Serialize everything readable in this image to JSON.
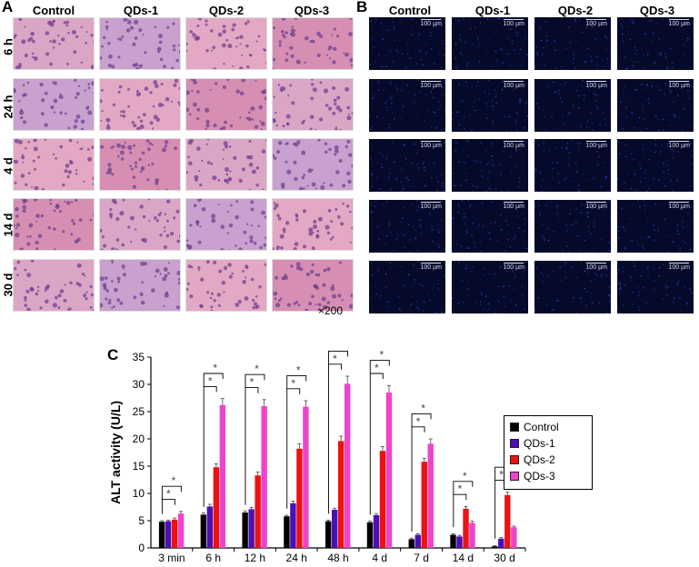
{
  "panel_a": {
    "letter": "A",
    "columns": [
      "Control",
      "QDs-1",
      "QDs-2",
      "QDs-3"
    ],
    "rows": [
      "6 h",
      "24 h",
      "4 d",
      "14 d",
      "30 d"
    ],
    "magnification": "×200"
  },
  "panel_b": {
    "letter": "B",
    "columns": [
      "Control",
      "QDs-1",
      "QDs-2",
      "QDs-3"
    ],
    "scale_label": "100 µm"
  },
  "panel_c": {
    "letter": "C"
  },
  "colors": {
    "Control": "#000000",
    "QDs-1": "#4b0fb4",
    "QDs-2": "#ee1111",
    "QDs-3": "#ee44cc",
    "he_base": "#e3b3d0",
    "fluor_base": "#050a2a"
  },
  "chart_data": {
    "type": "bar",
    "ylabel": "ALT activity (U/L)",
    "xlabel": "",
    "ylim": [
      0,
      35
    ],
    "yticks": [
      0,
      5,
      10,
      15,
      20,
      25,
      30,
      35
    ],
    "categories": [
      "3 min",
      "6 h",
      "12 h",
      "24 h",
      "48 h",
      "4 d",
      "7 d",
      "14 d",
      "30 d"
    ],
    "series": [
      {
        "name": "Control",
        "values": [
          4.8,
          6.1,
          6.5,
          5.8,
          4.9,
          4.7,
          1.6,
          2.4,
          0.3
        ],
        "errors": [
          0.2,
          0.3,
          0.3,
          0.2,
          0.2,
          0.2,
          0.2,
          0.2,
          0.1
        ]
      },
      {
        "name": "QDs-1",
        "values": [
          4.9,
          7.6,
          7.1,
          8.2,
          7.0,
          6.0,
          2.4,
          2.1,
          1.7
        ],
        "errors": [
          0.2,
          0.4,
          0.3,
          0.4,
          0.3,
          0.3,
          0.2,
          0.2,
          0.2
        ]
      },
      {
        "name": "QDs-2",
        "values": [
          5.2,
          14.8,
          13.3,
          18.2,
          19.6,
          17.8,
          15.8,
          7.2,
          9.7
        ],
        "errors": [
          0.3,
          0.6,
          0.6,
          0.9,
          0.9,
          0.8,
          0.6,
          0.4,
          0.5
        ]
      },
      {
        "name": "QDs-3",
        "values": [
          6.3,
          26.2,
          26.0,
          25.9,
          30.1,
          28.5,
          19.1,
          4.6,
          3.8
        ],
        "errors": [
          0.4,
          1.2,
          1.2,
          1.1,
          1.4,
          1.3,
          0.9,
          0.3,
          0.2
        ]
      }
    ],
    "significance_marker": "*",
    "legend_position": "right"
  }
}
